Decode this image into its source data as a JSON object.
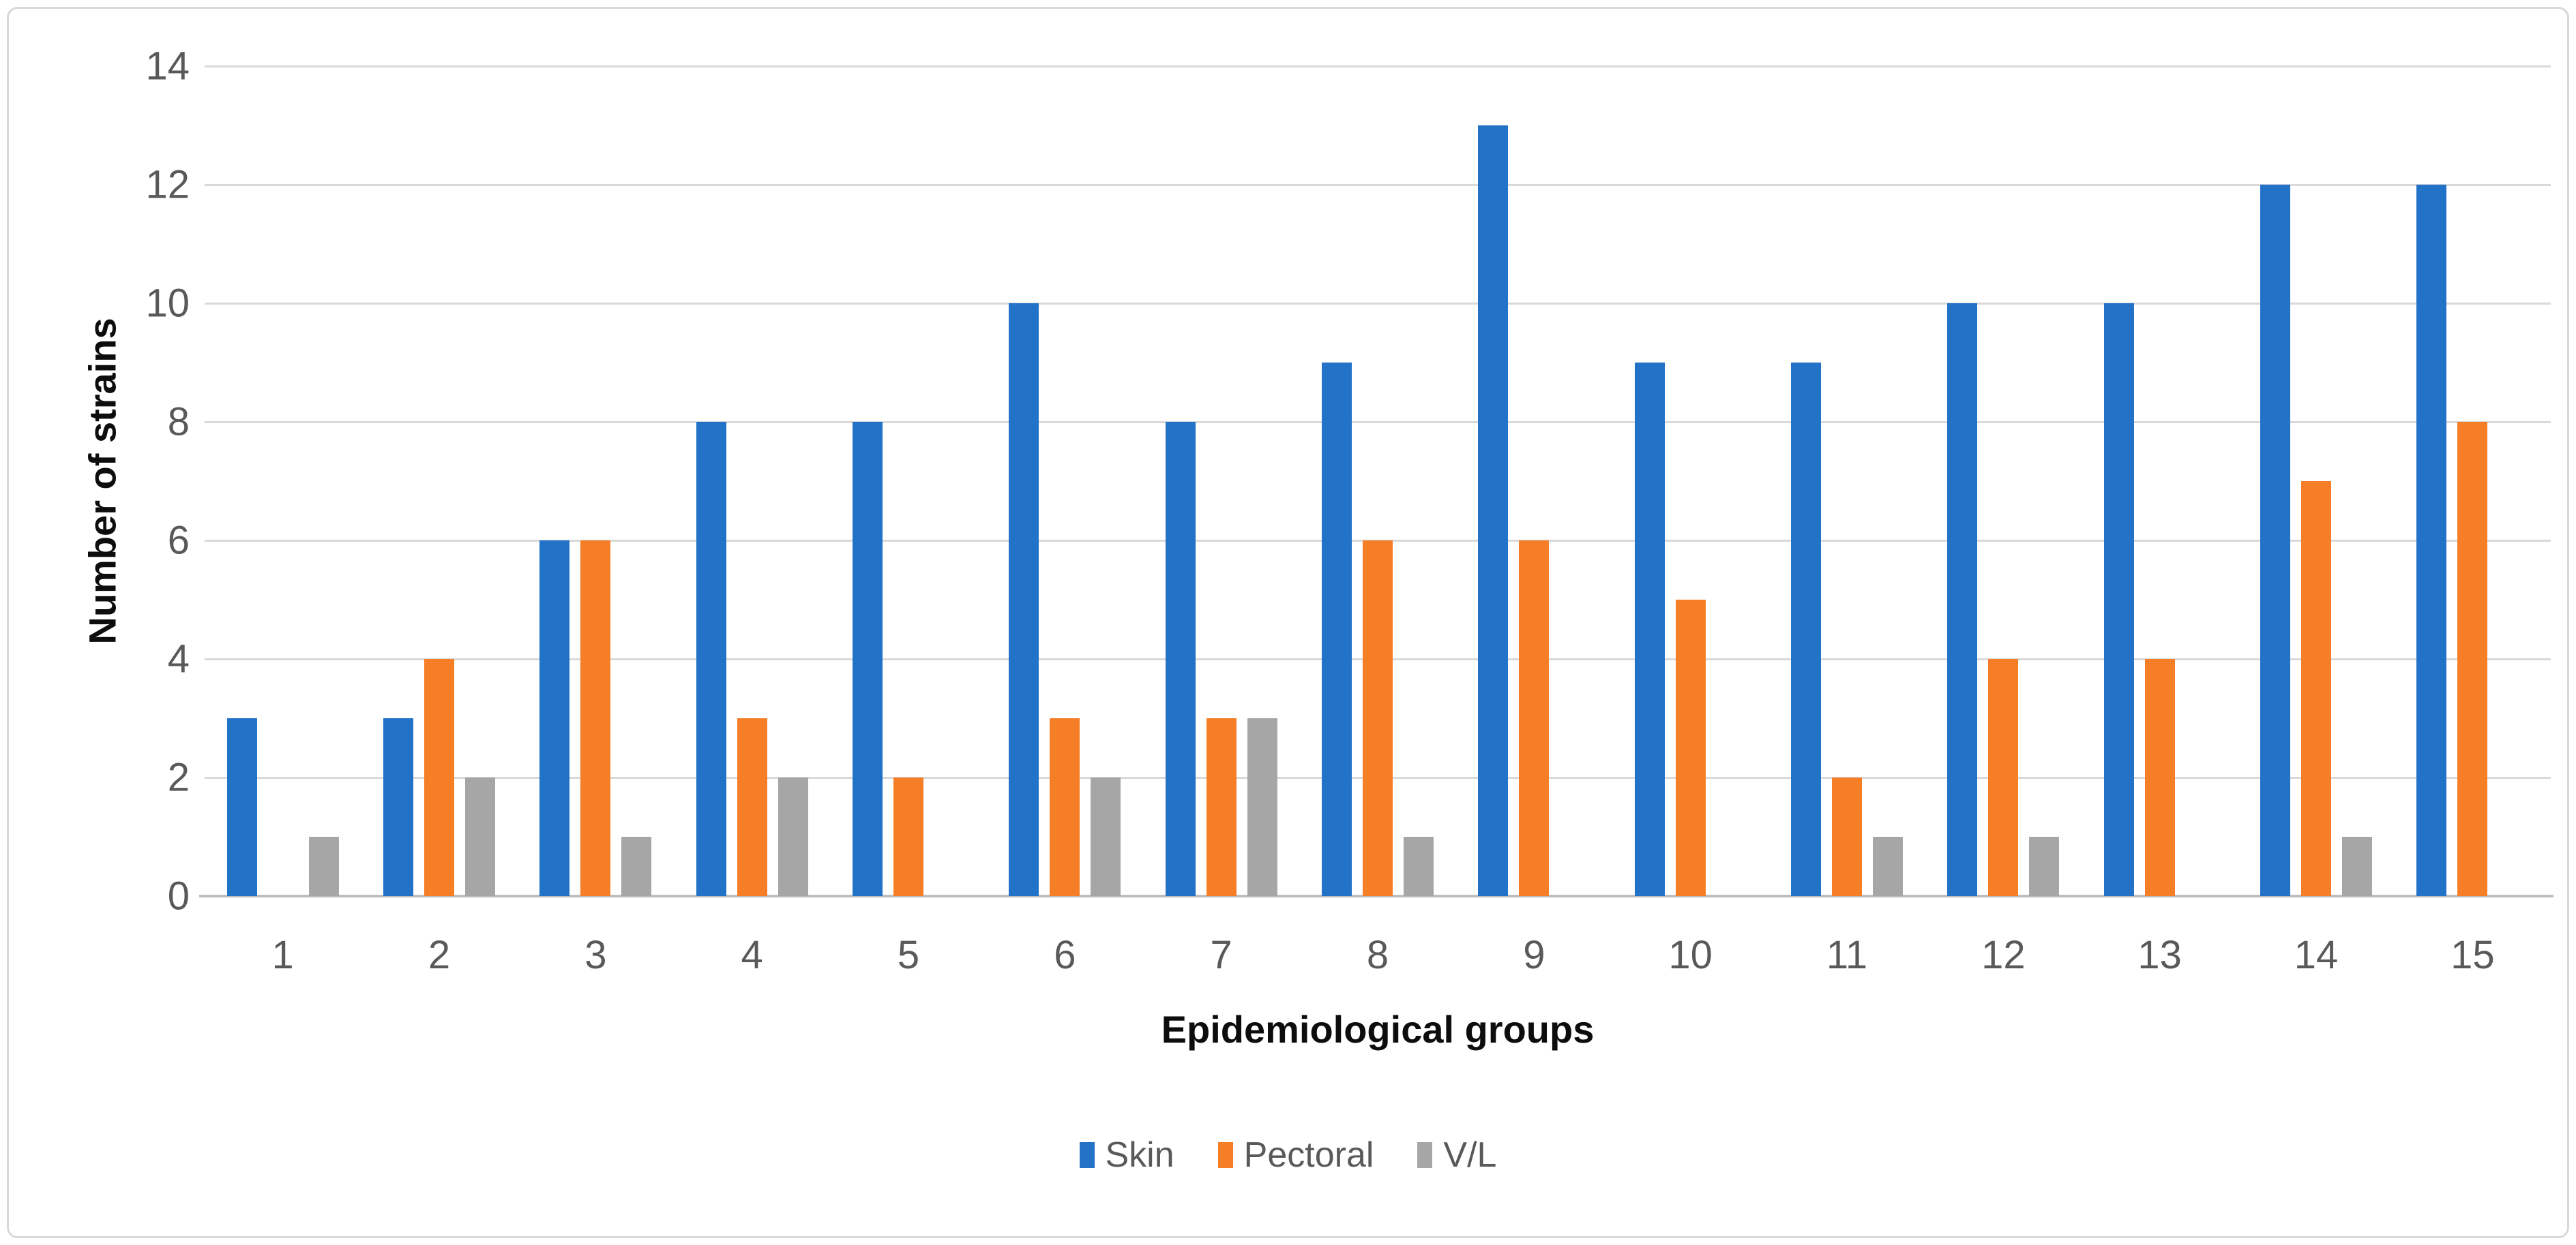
{
  "figure": {
    "background_color": "#ffffff",
    "border_color": "#d9d9d9"
  },
  "chart_data": {
    "type": "bar",
    "title": "",
    "xlabel": "Epidemiological groups",
    "ylabel": "Number of strains",
    "categories": [
      "1",
      "2",
      "3",
      "4",
      "5",
      "6",
      "7",
      "8",
      "9",
      "10",
      "11",
      "12",
      "13",
      "14",
      "15"
    ],
    "series": [
      {
        "name": "Skin",
        "color": "#2272c8",
        "values": [
          3,
          3,
          6,
          8,
          8,
          10,
          8,
          9,
          13,
          9,
          9,
          10,
          10,
          12,
          12
        ]
      },
      {
        "name": "Pectoral",
        "color": "#f57e27",
        "values": [
          0,
          4,
          6,
          3,
          2,
          3,
          3,
          6,
          6,
          5,
          2,
          4,
          4,
          7,
          8
        ]
      },
      {
        "name": "V/L",
        "color": "#a6a6a6",
        "values": [
          1,
          2,
          1,
          2,
          0,
          2,
          3,
          1,
          0,
          0,
          1,
          1,
          0,
          1,
          0
        ]
      }
    ],
    "y_ticks": [
      0,
      2,
      4,
      6,
      8,
      10,
      12,
      14
    ],
    "ylim": [
      0,
      14
    ],
    "grid": true,
    "gridline_color": "#d9d9d9",
    "axis_line_color": "#bfbfbf",
    "tick_label_color": "#595959",
    "legend_position": "bottom"
  }
}
